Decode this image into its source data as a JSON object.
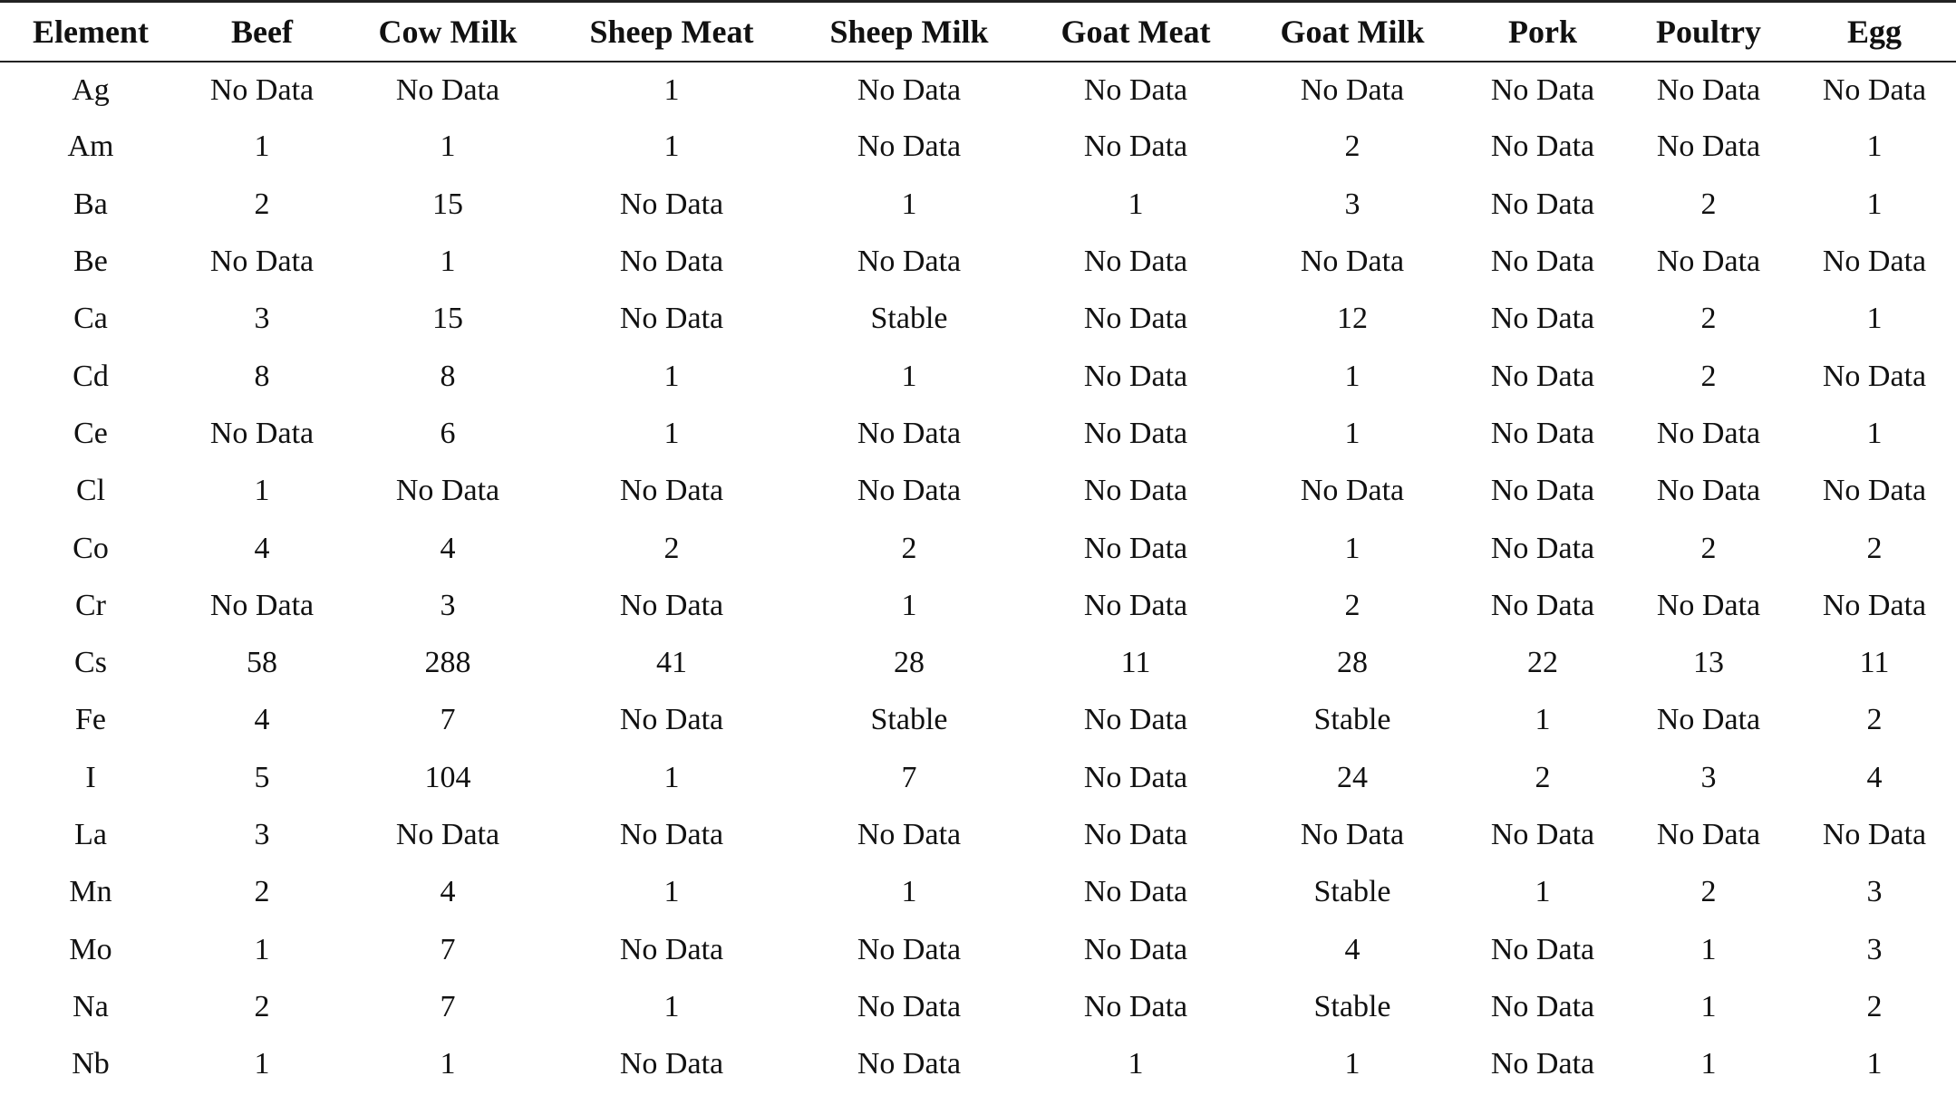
{
  "table": {
    "headers": [
      "Element",
      "Beef",
      "Cow Milk",
      "Sheep Meat",
      "Sheep Milk",
      "Goat Meat",
      "Goat Milk",
      "Pork",
      "Poultry",
      "Egg"
    ],
    "rows": [
      [
        "Ag",
        "No Data",
        "No Data",
        "1",
        "No Data",
        "No Data",
        "No Data",
        "No Data",
        "No Data",
        "No Data"
      ],
      [
        "Am",
        "1",
        "1",
        "1",
        "No Data",
        "No Data",
        "2",
        "No Data",
        "No Data",
        "1"
      ],
      [
        "Ba",
        "2",
        "15",
        "No Data",
        "1",
        "1",
        "3",
        "No Data",
        "2",
        "1"
      ],
      [
        "Be",
        "No Data",
        "1",
        "No Data",
        "No Data",
        "No Data",
        "No Data",
        "No Data",
        "No Data",
        "No Data"
      ],
      [
        "Ca",
        "3",
        "15",
        "No Data",
        "Stable",
        "No Data",
        "12",
        "No Data",
        "2",
        "1"
      ],
      [
        "Cd",
        "8",
        "8",
        "1",
        "1",
        "No Data",
        "1",
        "No Data",
        "2",
        "No Data"
      ],
      [
        "Ce",
        "No Data",
        "6",
        "1",
        "No Data",
        "No Data",
        "1",
        "No Data",
        "No Data",
        "1"
      ],
      [
        "Cl",
        "1",
        "No Data",
        "No Data",
        "No Data",
        "No Data",
        "No Data",
        "No Data",
        "No Data",
        "No Data"
      ],
      [
        "Co",
        "4",
        "4",
        "2",
        "2",
        "No Data",
        "1",
        "No Data",
        "2",
        "2"
      ],
      [
        "Cr",
        "No Data",
        "3",
        "No Data",
        "1",
        "No Data",
        "2",
        "No Data",
        "No Data",
        "No Data"
      ],
      [
        "Cs",
        "58",
        "288",
        "41",
        "28",
        "11",
        "28",
        "22",
        "13",
        "11"
      ],
      [
        "Fe",
        "4",
        "7",
        "No Data",
        "Stable",
        "No Data",
        "Stable",
        "1",
        "No Data",
        "2"
      ],
      [
        "I",
        "5",
        "104",
        "1",
        "7",
        "No Data",
        "24",
        "2",
        "3",
        "4"
      ],
      [
        "La",
        "3",
        "No Data",
        "No Data",
        "No Data",
        "No Data",
        "No Data",
        "No Data",
        "No Data",
        "No Data"
      ],
      [
        "Mn",
        "2",
        "4",
        "1",
        "1",
        "No Data",
        "Stable",
        "1",
        "2",
        "3"
      ],
      [
        "Mo",
        "1",
        "7",
        "No Data",
        "No Data",
        "No Data",
        "4",
        "No Data",
        "1",
        "3"
      ],
      [
        "Na",
        "2",
        "7",
        "1",
        "No Data",
        "No Data",
        "Stable",
        "No Data",
        "1",
        "2"
      ],
      [
        "Nb",
        "1",
        "1",
        "No Data",
        "No Data",
        "1",
        "1",
        "No Data",
        "1",
        "1"
      ]
    ]
  }
}
